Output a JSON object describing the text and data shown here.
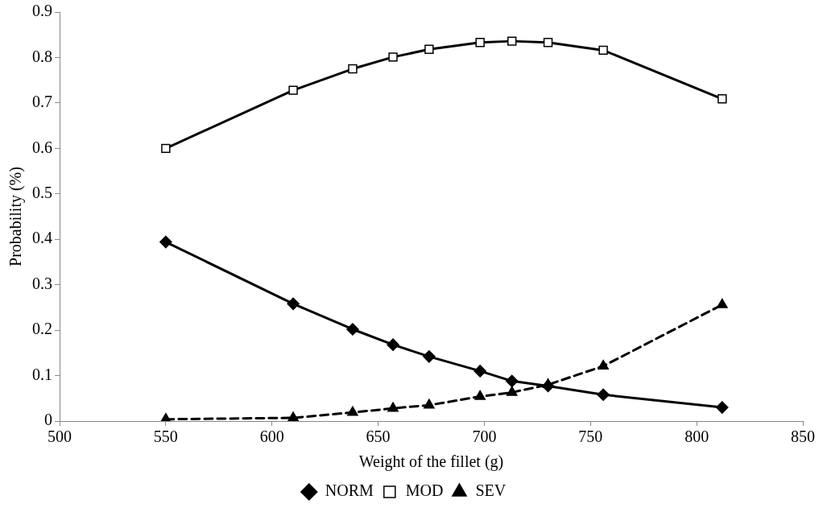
{
  "chart_data": {
    "type": "line",
    "xlabel": "Weight of the fillet (g)",
    "ylabel": "Probability (%)",
    "x": [
      550,
      610,
      638,
      657,
      674,
      698,
      713,
      730,
      756,
      812
    ],
    "series": [
      {
        "name": "NORM",
        "color": "#000000",
        "marker": "diamond",
        "line_style": "solid",
        "values": [
          0.394,
          0.258,
          0.202,
          0.168,
          0.142,
          0.11,
          0.088,
          0.077,
          0.058,
          0.03
        ]
      },
      {
        "name": "MOD",
        "color": "#000000",
        "marker": "square",
        "line_style": "solid",
        "values": [
          0.6,
          0.728,
          0.775,
          0.801,
          0.818,
          0.833,
          0.836,
          0.833,
          0.816,
          0.709
        ]
      },
      {
        "name": "SEV",
        "color": "#000000",
        "marker": "triangle",
        "line_style": "dashed",
        "values": [
          0.004,
          0.007,
          0.019,
          0.028,
          0.035,
          0.054,
          0.063,
          0.08,
          0.121,
          0.256
        ]
      }
    ],
    "xlim": [
      500,
      850
    ],
    "xticks": [
      500,
      550,
      600,
      650,
      700,
      750,
      800,
      850
    ],
    "ylim": [
      0,
      0.9
    ],
    "yticks": [
      0,
      0.1,
      0.2,
      0.3,
      0.4,
      0.5,
      0.6,
      0.7,
      0.8,
      0.9
    ],
    "grid": false,
    "legend": "bottom"
  }
}
